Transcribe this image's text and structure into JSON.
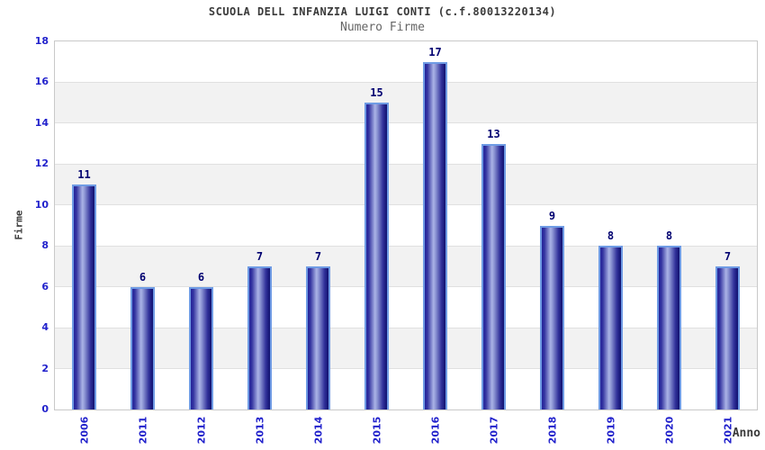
{
  "header": {
    "title": "SCUOLA DELL INFANZIA LUIGI CONTI (c.f.80013220134)",
    "subtitle": "Numero Firme"
  },
  "chart_data": {
    "type": "bar",
    "title": "SCUOLA DELL INFANZIA LUIGI CONTI (c.f.80013220134)",
    "subtitle": "Numero Firme",
    "xlabel": "Anno",
    "ylabel": "Firme",
    "categories": [
      "2006",
      "2011",
      "2012",
      "2013",
      "2014",
      "2015",
      "2016",
      "2017",
      "2018",
      "2019",
      "2020",
      "2021"
    ],
    "values": [
      11,
      6,
      6,
      7,
      7,
      15,
      17,
      13,
      9,
      8,
      8,
      7
    ],
    "ylim": [
      0,
      18
    ],
    "yticks": [
      0,
      2,
      4,
      6,
      8,
      10,
      12,
      14,
      16,
      18
    ],
    "grid": "horizontal",
    "legend": "none",
    "x_tick_rotation": -90,
    "colors": {
      "bar_dark": "#26269c",
      "bar_light": "#aab3e6",
      "bar_border": "#6f9be4",
      "axis_text": "#2222cc",
      "value_label": "#000070",
      "band_alt": "#f2f2f2",
      "gridline": "#e0e0e0",
      "plot_border": "#c9c9c9",
      "title_text": "#3a3a3a",
      "subtitle_text": "#666666"
    }
  }
}
